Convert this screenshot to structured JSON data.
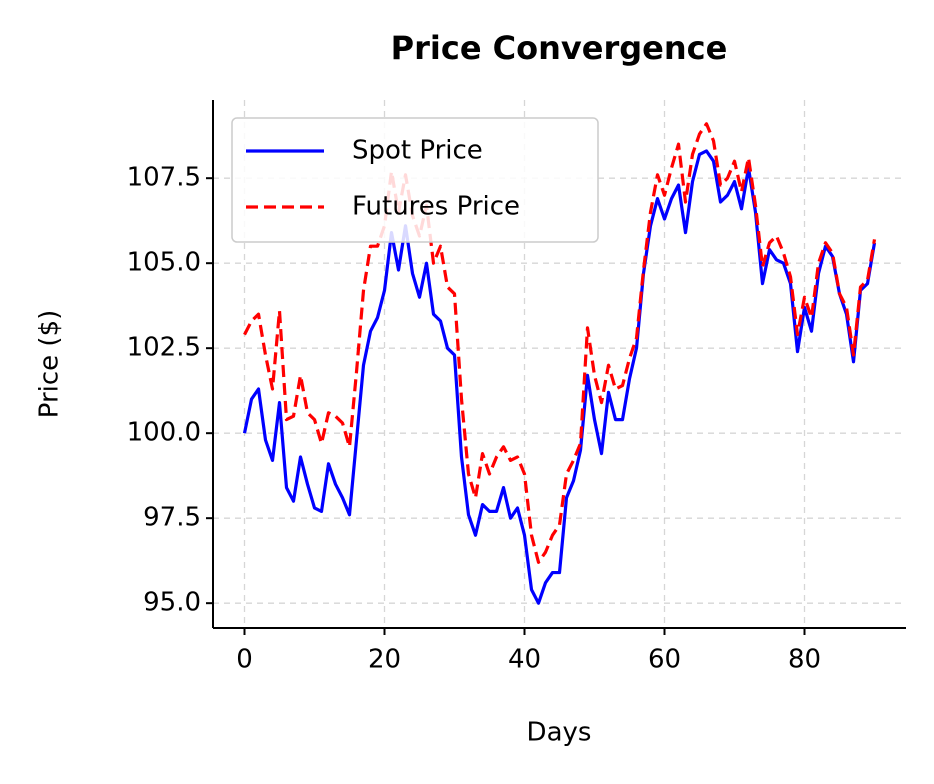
{
  "chart_data": {
    "type": "line",
    "title": "Price Convergence",
    "x_label": "Days",
    "y_label": "Price ($)",
    "x": [
      0,
      1,
      2,
      3,
      4,
      5,
      6,
      7,
      8,
      9,
      10,
      11,
      12,
      13,
      14,
      15,
      16,
      17,
      18,
      19,
      20,
      21,
      22,
      23,
      24,
      25,
      26,
      27,
      28,
      29,
      30,
      31,
      32,
      33,
      34,
      35,
      36,
      37,
      38,
      39,
      40,
      41,
      42,
      43,
      44,
      45,
      46,
      47,
      48,
      49,
      50,
      51,
      52,
      53,
      54,
      55,
      56,
      57,
      58,
      59,
      60,
      61,
      62,
      63,
      64,
      65,
      66,
      67,
      68,
      69,
      70,
      71,
      72,
      73,
      74,
      75,
      76,
      77,
      78,
      79,
      80,
      81,
      82,
      83,
      84,
      85,
      86,
      87,
      88,
      89,
      90
    ],
    "series": [
      {
        "name": "Spot Price",
        "color": "#0000ff",
        "dash": "solid",
        "values": [
          100.0,
          101.0,
          101.3,
          99.8,
          99.2,
          100.9,
          98.4,
          98.0,
          99.3,
          98.5,
          97.8,
          97.7,
          99.1,
          98.5,
          98.1,
          97.6,
          99.8,
          102.0,
          103.0,
          103.4,
          104.2,
          105.9,
          104.8,
          106.1,
          104.7,
          104.0,
          105.0,
          103.5,
          103.3,
          102.5,
          102.3,
          99.3,
          97.6,
          97.0,
          97.9,
          97.7,
          97.7,
          98.4,
          97.5,
          97.8,
          97.0,
          95.4,
          95.0,
          95.6,
          95.9,
          95.9,
          98.1,
          98.6,
          99.5,
          101.7,
          100.4,
          99.4,
          101.2,
          100.4,
          100.4,
          101.6,
          102.5,
          104.7,
          106.1,
          106.9,
          106.3,
          106.9,
          107.3,
          105.9,
          107.4,
          108.2,
          108.3,
          108.0,
          106.8,
          107.0,
          107.4,
          106.6,
          107.8,
          106.5,
          104.4,
          105.4,
          105.1,
          105.0,
          104.4,
          102.4,
          103.7,
          103.0,
          104.7,
          105.5,
          105.2,
          104.1,
          103.5,
          102.1,
          104.2,
          104.4,
          105.6
        ]
      },
      {
        "name": "Futures Price",
        "color": "#ff0000",
        "dash": "dashed",
        "values": [
          102.9,
          103.3,
          103.5,
          102.3,
          101.3,
          103.6,
          100.4,
          100.5,
          101.7,
          100.6,
          100.4,
          99.7,
          100.6,
          100.5,
          100.3,
          99.6,
          101.8,
          104.2,
          105.5,
          105.5,
          106.1,
          107.7,
          106.5,
          107.6,
          106.4,
          105.8,
          106.7,
          105.0,
          105.5,
          104.3,
          104.1,
          101.0,
          98.8,
          98.1,
          99.4,
          98.8,
          99.3,
          99.6,
          99.2,
          99.3,
          98.8,
          97.0,
          96.2,
          96.5,
          97.0,
          97.3,
          98.8,
          99.2,
          99.7,
          103.1,
          101.7,
          100.9,
          102.0,
          101.3,
          101.4,
          102.2,
          102.8,
          104.8,
          106.5,
          107.6,
          107.0,
          107.8,
          108.5,
          106.8,
          108.2,
          108.8,
          109.1,
          108.6,
          107.3,
          107.5,
          108.0,
          107.1,
          108.1,
          106.7,
          104.9,
          105.6,
          105.8,
          105.3,
          104.6,
          102.9,
          104.0,
          103.4,
          105.0,
          105.6,
          105.3,
          104.1,
          103.7,
          102.3,
          104.3,
          104.5,
          105.7
        ]
      }
    ],
    "xlim": [
      -4.5,
      94.5
    ],
    "xticks": [
      0,
      20,
      40,
      60,
      80
    ],
    "ylim": [
      94.27,
      109.8
    ],
    "yticks": [
      {
        "value": 95,
        "label": "95.0"
      },
      {
        "value": 97.5,
        "label": "97.5"
      },
      {
        "value": 100,
        "label": "100.0"
      },
      {
        "value": 102.5,
        "label": "102.5"
      },
      {
        "value": 105,
        "label": "105.0"
      },
      {
        "value": 107.5,
        "label": "107.5"
      }
    ],
    "grid": true,
    "legend": "upper left"
  }
}
